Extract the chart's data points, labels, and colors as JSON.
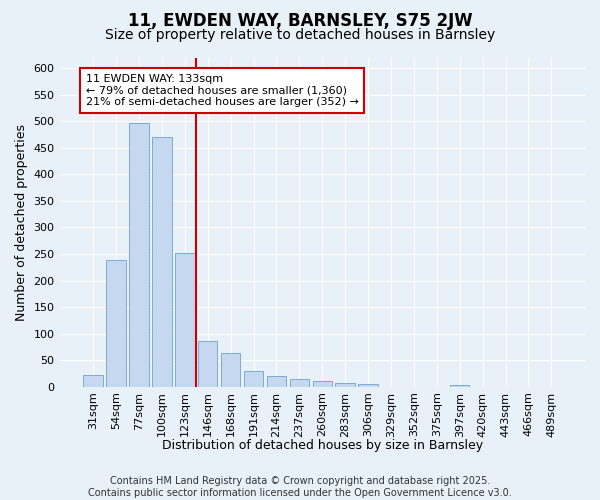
{
  "title": "11, EWDEN WAY, BARNSLEY, S75 2JW",
  "subtitle": "Size of property relative to detached houses in Barnsley",
  "xlabel": "Distribution of detached houses by size in Barnsley",
  "ylabel": "Number of detached properties",
  "footer": "Contains HM Land Registry data © Crown copyright and database right 2025.\nContains public sector information licensed under the Open Government Licence v3.0.",
  "categories": [
    "31sqm",
    "54sqm",
    "77sqm",
    "100sqm",
    "123sqm",
    "146sqm",
    "168sqm",
    "191sqm",
    "214sqm",
    "237sqm",
    "260sqm",
    "283sqm",
    "306sqm",
    "329sqm",
    "352sqm",
    "375sqm",
    "397sqm",
    "420sqm",
    "443sqm",
    "466sqm",
    "489sqm"
  ],
  "values": [
    23,
    238,
    497,
    470,
    252,
    87,
    63,
    30,
    20,
    14,
    10,
    7,
    5,
    0,
    0,
    0,
    4,
    0,
    0,
    0,
    0
  ],
  "bar_color": "#c5d8f0",
  "bar_edge_color": "#7aadd4",
  "vline_x": 4.5,
  "vline_color": "#cc0000",
  "annotation_text": "11 EWDEN WAY: 133sqm\n← 79% of detached houses are smaller (1,360)\n21% of semi-detached houses are larger (352) →",
  "annotation_box_facecolor": "#ffffff",
  "annotation_box_edgecolor": "#cc0000",
  "ylim": [
    0,
    620
  ],
  "yticks": [
    0,
    50,
    100,
    150,
    200,
    250,
    300,
    350,
    400,
    450,
    500,
    550,
    600
  ],
  "background_color": "#e8f0f8",
  "plot_background": "#e8f0f8",
  "grid_color": "#ffffff",
  "title_fontsize": 12,
  "subtitle_fontsize": 10,
  "label_fontsize": 9,
  "tick_fontsize": 8,
  "annotation_fontsize": 8,
  "footer_fontsize": 7
}
